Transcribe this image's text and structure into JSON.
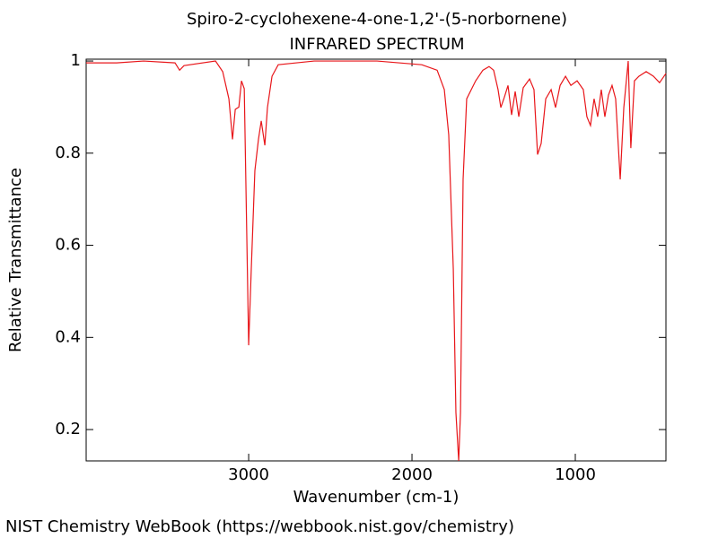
{
  "chart_data": {
    "type": "line",
    "title": "Spiro-2-cyclohexene-4-one-1,2'-(5-norbornene)",
    "subtitle": "INFRARED SPECTRUM",
    "x_label": "Wavenumber (cm-1)",
    "y_label": "Relative Transmittance",
    "footer": "NIST Chemistry WebBook (https://webbook.nist.gov/chemistry)",
    "xlim": [
      3995,
      445
    ],
    "ylim": [
      0.132,
      1.004
    ],
    "xticks": [
      3000,
      2000,
      1000
    ],
    "yticks": [
      0.2,
      0.4,
      0.6,
      0.8,
      1
    ],
    "series": [
      {
        "color": "#e8161a",
        "x": [
          3995,
          3808,
          3643,
          3451,
          3423,
          3396,
          3203,
          3159,
          3121,
          3099,
          3082,
          3060,
          3044,
          3027,
          3000,
          2984,
          2962,
          2940,
          2923,
          2901,
          2885,
          2857,
          2819,
          2599,
          2214,
          1940,
          1846,
          1802,
          1775,
          1747,
          1731,
          1714,
          1703,
          1687,
          1665,
          1610,
          1566,
          1528,
          1500,
          1473,
          1456,
          1434,
          1412,
          1390,
          1368,
          1346,
          1319,
          1280,
          1253,
          1231,
          1209,
          1181,
          1148,
          1121,
          1093,
          1060,
          1027,
          989,
          951,
          929,
          907,
          885,
          863,
          841,
          819,
          797,
          775,
          753,
          725,
          703,
          676,
          660,
          638,
          610,
          566,
          522,
          484,
          445
        ],
        "values": [
          0.996,
          0.996,
          1.0,
          0.996,
          0.98,
          0.99,
          1.0,
          0.977,
          0.918,
          0.83,
          0.895,
          0.9,
          0.957,
          0.94,
          0.383,
          0.548,
          0.762,
          0.83,
          0.87,
          0.817,
          0.899,
          0.967,
          0.992,
          1.0,
          1.0,
          0.992,
          0.98,
          0.938,
          0.84,
          0.548,
          0.237,
          0.132,
          0.237,
          0.743,
          0.918,
          0.957,
          0.98,
          0.988,
          0.98,
          0.938,
          0.899,
          0.922,
          0.947,
          0.883,
          0.934,
          0.879,
          0.942,
          0.961,
          0.938,
          0.797,
          0.821,
          0.918,
          0.938,
          0.899,
          0.947,
          0.967,
          0.947,
          0.957,
          0.938,
          0.879,
          0.86,
          0.918,
          0.879,
          0.938,
          0.879,
          0.926,
          0.947,
          0.918,
          0.743,
          0.899,
          1.0,
          0.811,
          0.957,
          0.967,
          0.977,
          0.967,
          0.953,
          0.973
        ]
      }
    ]
  }
}
